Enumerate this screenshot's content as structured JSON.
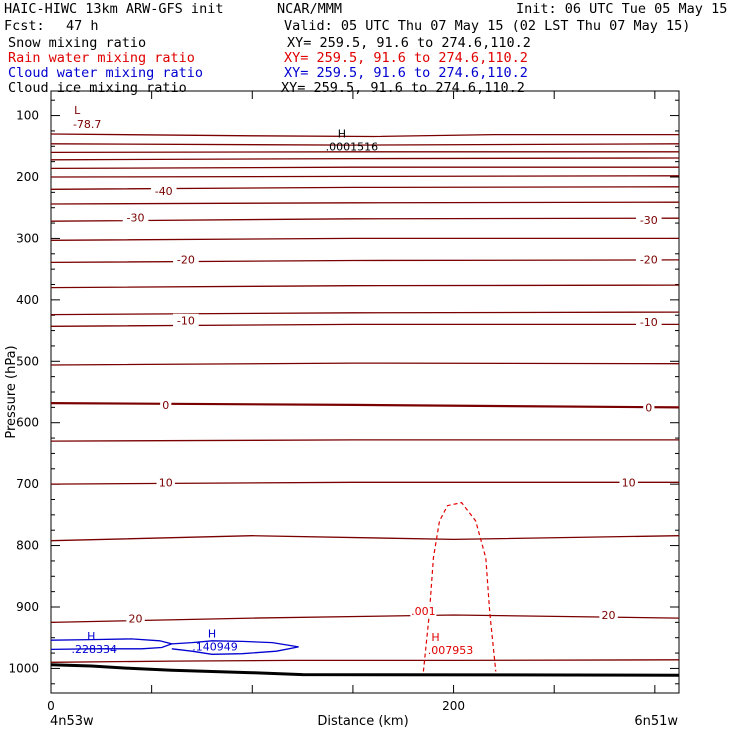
{
  "header": {
    "title_left": "HAIC-HIWC 13km ARW-GFS init",
    "org": "NCAR/MMM",
    "init": "Init: 06 UTC Tue 05 May 15",
    "fcst_label": "Fcst:",
    "fcst_value": "47 h",
    "valid": "Valid: 05 UTC Thu 07 May 15 (02 LST Thu 07 May 15)"
  },
  "legend": [
    {
      "name": "Snow mixing ratio",
      "xy": "XY= 259.5, 91.6 to 274.6,110.2",
      "color": "#000000"
    },
    {
      "name": "Rain water mixing ratio",
      "xy": "XY= 259.5, 91.6 to 274.6,110.2",
      "color": "#e00000"
    },
    {
      "name": "Cloud water mixing ratio",
      "xy": "XY= 259.5, 91.6 to 274.6,110.2",
      "color": "#0000d0"
    },
    {
      "name": "Cloud ice mixing ratio",
      "xy": "XY= 259.5, 91.6 to 274.6,110.2",
      "color": "#000000"
    }
  ],
  "chart_data": {
    "type": "cross-section",
    "xlabel": "Distance (km)",
    "ylabel": "Pressure (hPa)",
    "xlim": [
      0,
      312
    ],
    "ylim": [
      1040,
      60
    ],
    "y_ticks": [
      100,
      200,
      300,
      400,
      500,
      600,
      700,
      800,
      900,
      1000
    ],
    "x_ticks": [
      0,
      200
    ],
    "x_minor_ticks": [
      50,
      100,
      150,
      250,
      300
    ],
    "left_endpoint": "4n53w",
    "right_endpoint": "6n51w",
    "temperature_isotherms": {
      "color": "#7a0000",
      "interval": 5,
      "lines": [
        {
          "pts": [
            [
              0,
              130
            ],
            [
              100,
              133
            ],
            [
              160,
              134
            ],
            [
              220,
              131
            ],
            [
              312,
              131
            ]
          ]
        },
        {
          "pts": [
            [
              0,
              146
            ],
            [
              150,
              148
            ],
            [
              312,
              146
            ]
          ]
        },
        {
          "pts": [
            [
              0,
              160
            ],
            [
              150,
              159
            ],
            [
              312,
              159
            ]
          ]
        },
        {
          "pts": [
            [
              0,
              172
            ],
            [
              150,
              170
            ],
            [
              312,
              169
            ]
          ]
        },
        {
          "pts": [
            [
              0,
              186
            ],
            [
              150,
              184
            ],
            [
              312,
              184
            ]
          ]
        },
        {
          "pts": [
            [
              0,
              200
            ],
            [
              150,
              199
            ],
            [
              312,
              198
            ]
          ]
        },
        {
          "pts": [
            [
              0,
              220
            ],
            [
              150,
              217
            ],
            [
              312,
              216
            ]
          ]
        },
        {
          "pts": [
            [
              0,
              244
            ],
            [
              150,
              242
            ],
            [
              312,
              241
            ]
          ]
        },
        {
          "pts": [
            [
              0,
              272
            ],
            [
              150,
              268
            ],
            [
              312,
              267
            ]
          ]
        },
        {
          "pts": [
            [
              0,
              303
            ],
            [
              150,
              300
            ],
            [
              312,
              300
            ]
          ]
        },
        {
          "pts": [
            [
              0,
              339
            ],
            [
              150,
              336
            ],
            [
              312,
              335
            ]
          ]
        },
        {
          "pts": [
            [
              0,
              380
            ],
            [
              150,
              377
            ],
            [
              312,
              376
            ]
          ]
        },
        {
          "pts": [
            [
              0,
              424
            ],
            [
              150,
              421
            ],
            [
              312,
              420
            ]
          ]
        },
        {
          "pts": [
            [
              0,
              443
            ],
            [
              150,
              440
            ],
            [
              312,
              440
            ]
          ]
        },
        {
          "pts": [
            [
              0,
              506
            ],
            [
              150,
              503
            ],
            [
              312,
              504
            ]
          ]
        },
        {
          "pts": [
            [
              0,
              568
            ],
            [
              150,
              571
            ],
            [
              312,
              575
            ]
          ],
          "thick": true
        },
        {
          "pts": [
            [
              0,
              630
            ],
            [
              150,
              628
            ],
            [
              312,
              628
            ]
          ]
        },
        {
          "pts": [
            [
              0,
              700
            ],
            [
              150,
              697
            ],
            [
              312,
              697
            ]
          ]
        },
        {
          "pts": [
            [
              0,
              792
            ],
            [
              100,
              784
            ],
            [
              200,
              790
            ],
            [
              312,
              784
            ]
          ]
        },
        {
          "pts": [
            [
              0,
              925
            ],
            [
              100,
              918
            ],
            [
              200,
              913
            ],
            [
              312,
              918
            ]
          ]
        },
        {
          "pts": [
            [
              0,
              990
            ],
            [
              60,
              988
            ],
            [
              120,
              987
            ],
            [
              200,
              987
            ],
            [
              312,
              986
            ]
          ]
        }
      ],
      "labels": [
        {
          "text": "-40",
          "x": 56,
          "p": 223
        },
        {
          "text": "-30",
          "x": 42,
          "p": 266
        },
        {
          "text": "-30",
          "x": 297,
          "p": 270
        },
        {
          "text": "-20",
          "x": 67,
          "p": 334
        },
        {
          "text": "-20",
          "x": 297,
          "p": 334
        },
        {
          "text": "-10",
          "x": 67,
          "p": 434
        },
        {
          "text": "-10",
          "x": 297,
          "p": 436
        },
        {
          "text": "0",
          "x": 57,
          "p": 571
        },
        {
          "text": "0",
          "x": 297,
          "p": 575
        },
        {
          "text": "10",
          "x": 57,
          "p": 697
        },
        {
          "text": "10",
          "x": 287,
          "p": 697
        },
        {
          "text": "20",
          "x": 42,
          "p": 919
        },
        {
          "text": "20",
          "x": 277,
          "p": 913
        }
      ]
    },
    "rain_water": {
      "color": "#e00000",
      "contour_value": ".001",
      "contour": [
        [
          185,
          1005
        ],
        [
          188,
          910
        ],
        [
          190,
          820
        ],
        [
          193,
          760
        ],
        [
          197,
          735
        ],
        [
          204,
          730
        ],
        [
          211,
          760
        ],
        [
          216,
          820
        ],
        [
          218,
          910
        ],
        [
          221,
          1005
        ]
      ],
      "contour_label": {
        "text": ".001",
        "x": 185,
        "p": 908
      },
      "max_marker": "H",
      "max_value": ".007953",
      "max_pos": {
        "x": 196,
        "p": 972
      }
    },
    "cloud_water": {
      "color": "#0000d0",
      "contours": [
        {
          "pts": [
            [
              0,
              954
            ],
            [
              20,
              953
            ],
            [
              40,
              952
            ],
            [
              54,
              955
            ],
            [
              60,
              960
            ],
            [
              55,
              966
            ],
            [
              45,
              968
            ],
            [
              20,
              968
            ],
            [
              0,
              969
            ]
          ]
        },
        {
          "pts": [
            [
              60,
              960
            ],
            [
              70,
              958
            ],
            [
              80,
              955
            ],
            [
              95,
              956
            ],
            [
              110,
              958
            ],
            [
              123,
              965
            ],
            [
              112,
              972
            ],
            [
              95,
              976
            ],
            [
              80,
              977
            ],
            [
              70,
              972
            ],
            [
              60,
              968
            ]
          ]
        }
      ],
      "maxima": [
        {
          "marker": "H",
          "value": ".228334",
          "x": 20,
          "p": 970
        },
        {
          "marker": "H",
          "value": ".140949",
          "x": 80,
          "p": 966
        }
      ]
    },
    "snow_cloud_ice": {
      "color": "#000000",
      "max_marker": "H",
      "max_value": ".0001516",
      "max_pos": {
        "x": 148,
        "p": 150
      },
      "min_marker": "L",
      "min_value": "-78.7",
      "min_pos": {
        "x": 14,
        "p": 88
      }
    },
    "terrain": {
      "color": "#000000",
      "pts": [
        [
          0,
          994
        ],
        [
          20,
          996
        ],
        [
          40,
          1000
        ],
        [
          60,
          1003
        ],
        [
          80,
          1005
        ],
        [
          100,
          1007
        ],
        [
          125,
          1010
        ],
        [
          312,
          1011
        ]
      ]
    }
  }
}
